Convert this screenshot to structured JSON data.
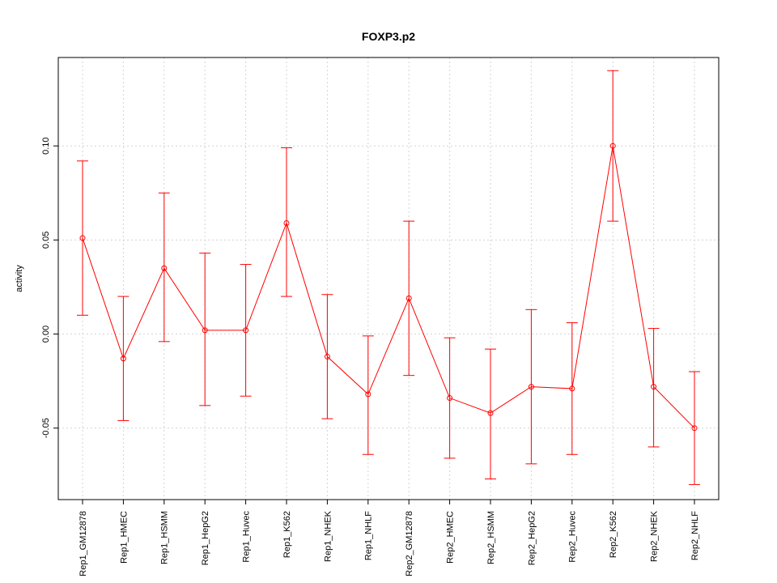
{
  "chart_data": {
    "type": "line",
    "title": "FOXP3.p2",
    "xlabel": "",
    "ylabel": "activity",
    "ylim": [
      -0.088,
      0.147
    ],
    "yticks": [
      -0.05,
      0.0,
      0.05,
      0.1
    ],
    "ytick_labels": [
      "-0.05",
      "0.00",
      "0.05",
      "0.10"
    ],
    "grid": true,
    "color": "#ff0000",
    "categories": [
      "Rep1_GM12878",
      "Rep1_HMEC",
      "Rep1_HSMM",
      "Rep1_HepG2",
      "Rep1_Huvec",
      "Rep1_K562",
      "Rep1_NHEK",
      "Rep1_NHLF",
      "Rep2_GM12878",
      "Rep2_HMEC",
      "Rep2_HSMM",
      "Rep2_HepG2",
      "Rep2_Huvec",
      "Rep2_K562",
      "Rep2_NHEK",
      "Rep2_NHLF"
    ],
    "series": [
      {
        "name": "activity",
        "values": [
          0.051,
          -0.013,
          0.035,
          0.002,
          0.002,
          0.059,
          -0.012,
          -0.032,
          0.019,
          -0.034,
          -0.042,
          -0.028,
          -0.029,
          0.1,
          -0.028,
          -0.05
        ],
        "lower": [
          0.01,
          -0.046,
          -0.004,
          -0.038,
          -0.033,
          0.02,
          -0.045,
          -0.064,
          -0.022,
          -0.066,
          -0.077,
          -0.069,
          -0.064,
          0.06,
          -0.06,
          -0.08
        ],
        "upper": [
          0.092,
          0.02,
          0.075,
          0.043,
          0.037,
          0.099,
          0.021,
          -0.001,
          0.06,
          -0.002,
          -0.008,
          0.013,
          0.006,
          0.14,
          0.003,
          -0.02
        ]
      }
    ]
  }
}
